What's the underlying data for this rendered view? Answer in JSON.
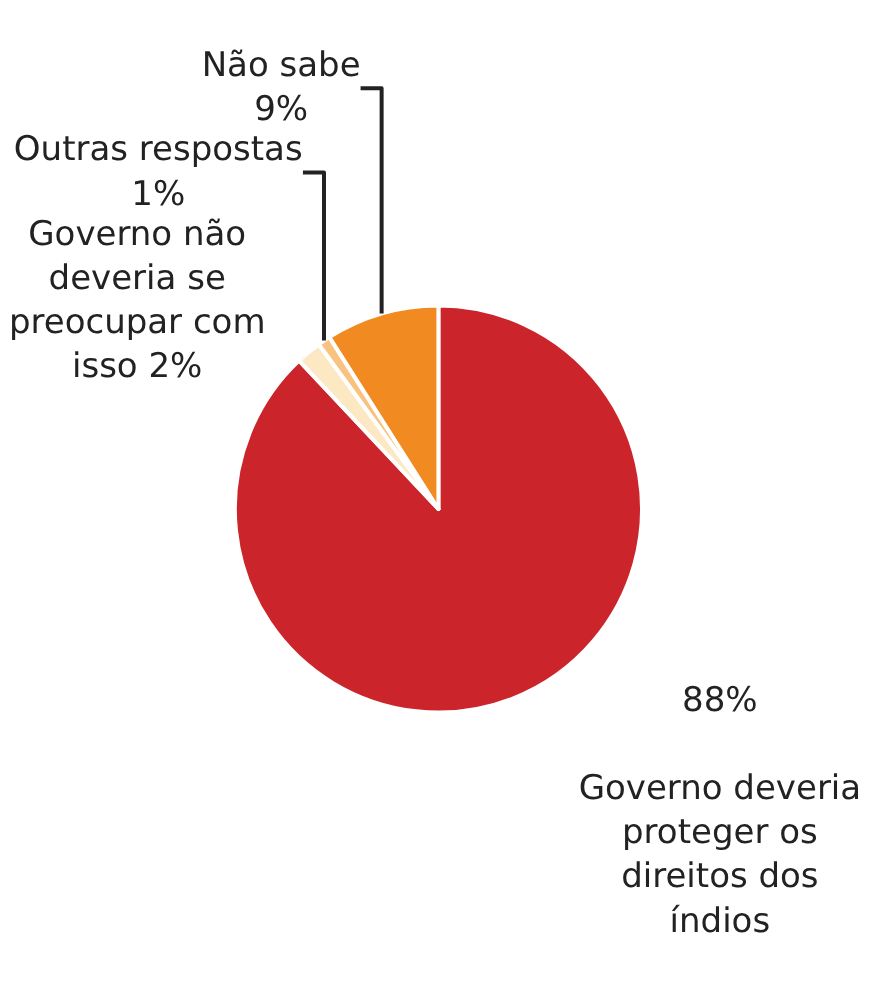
{
  "chart_data": {
    "type": "pie",
    "categories": [
      "Governo deveria proteger os direitos dos índios",
      "Governo não deveria se preocupar com isso",
      "Outras respostas",
      "Não sabe"
    ],
    "values": [
      88,
      2,
      1,
      9
    ],
    "colors": [
      "#cc242b",
      "#fde8c4",
      "#f9c27e",
      "#f28a22"
    ],
    "value_labels": [
      "88%",
      "2%",
      "1%",
      "9%"
    ],
    "legend": false
  }
}
